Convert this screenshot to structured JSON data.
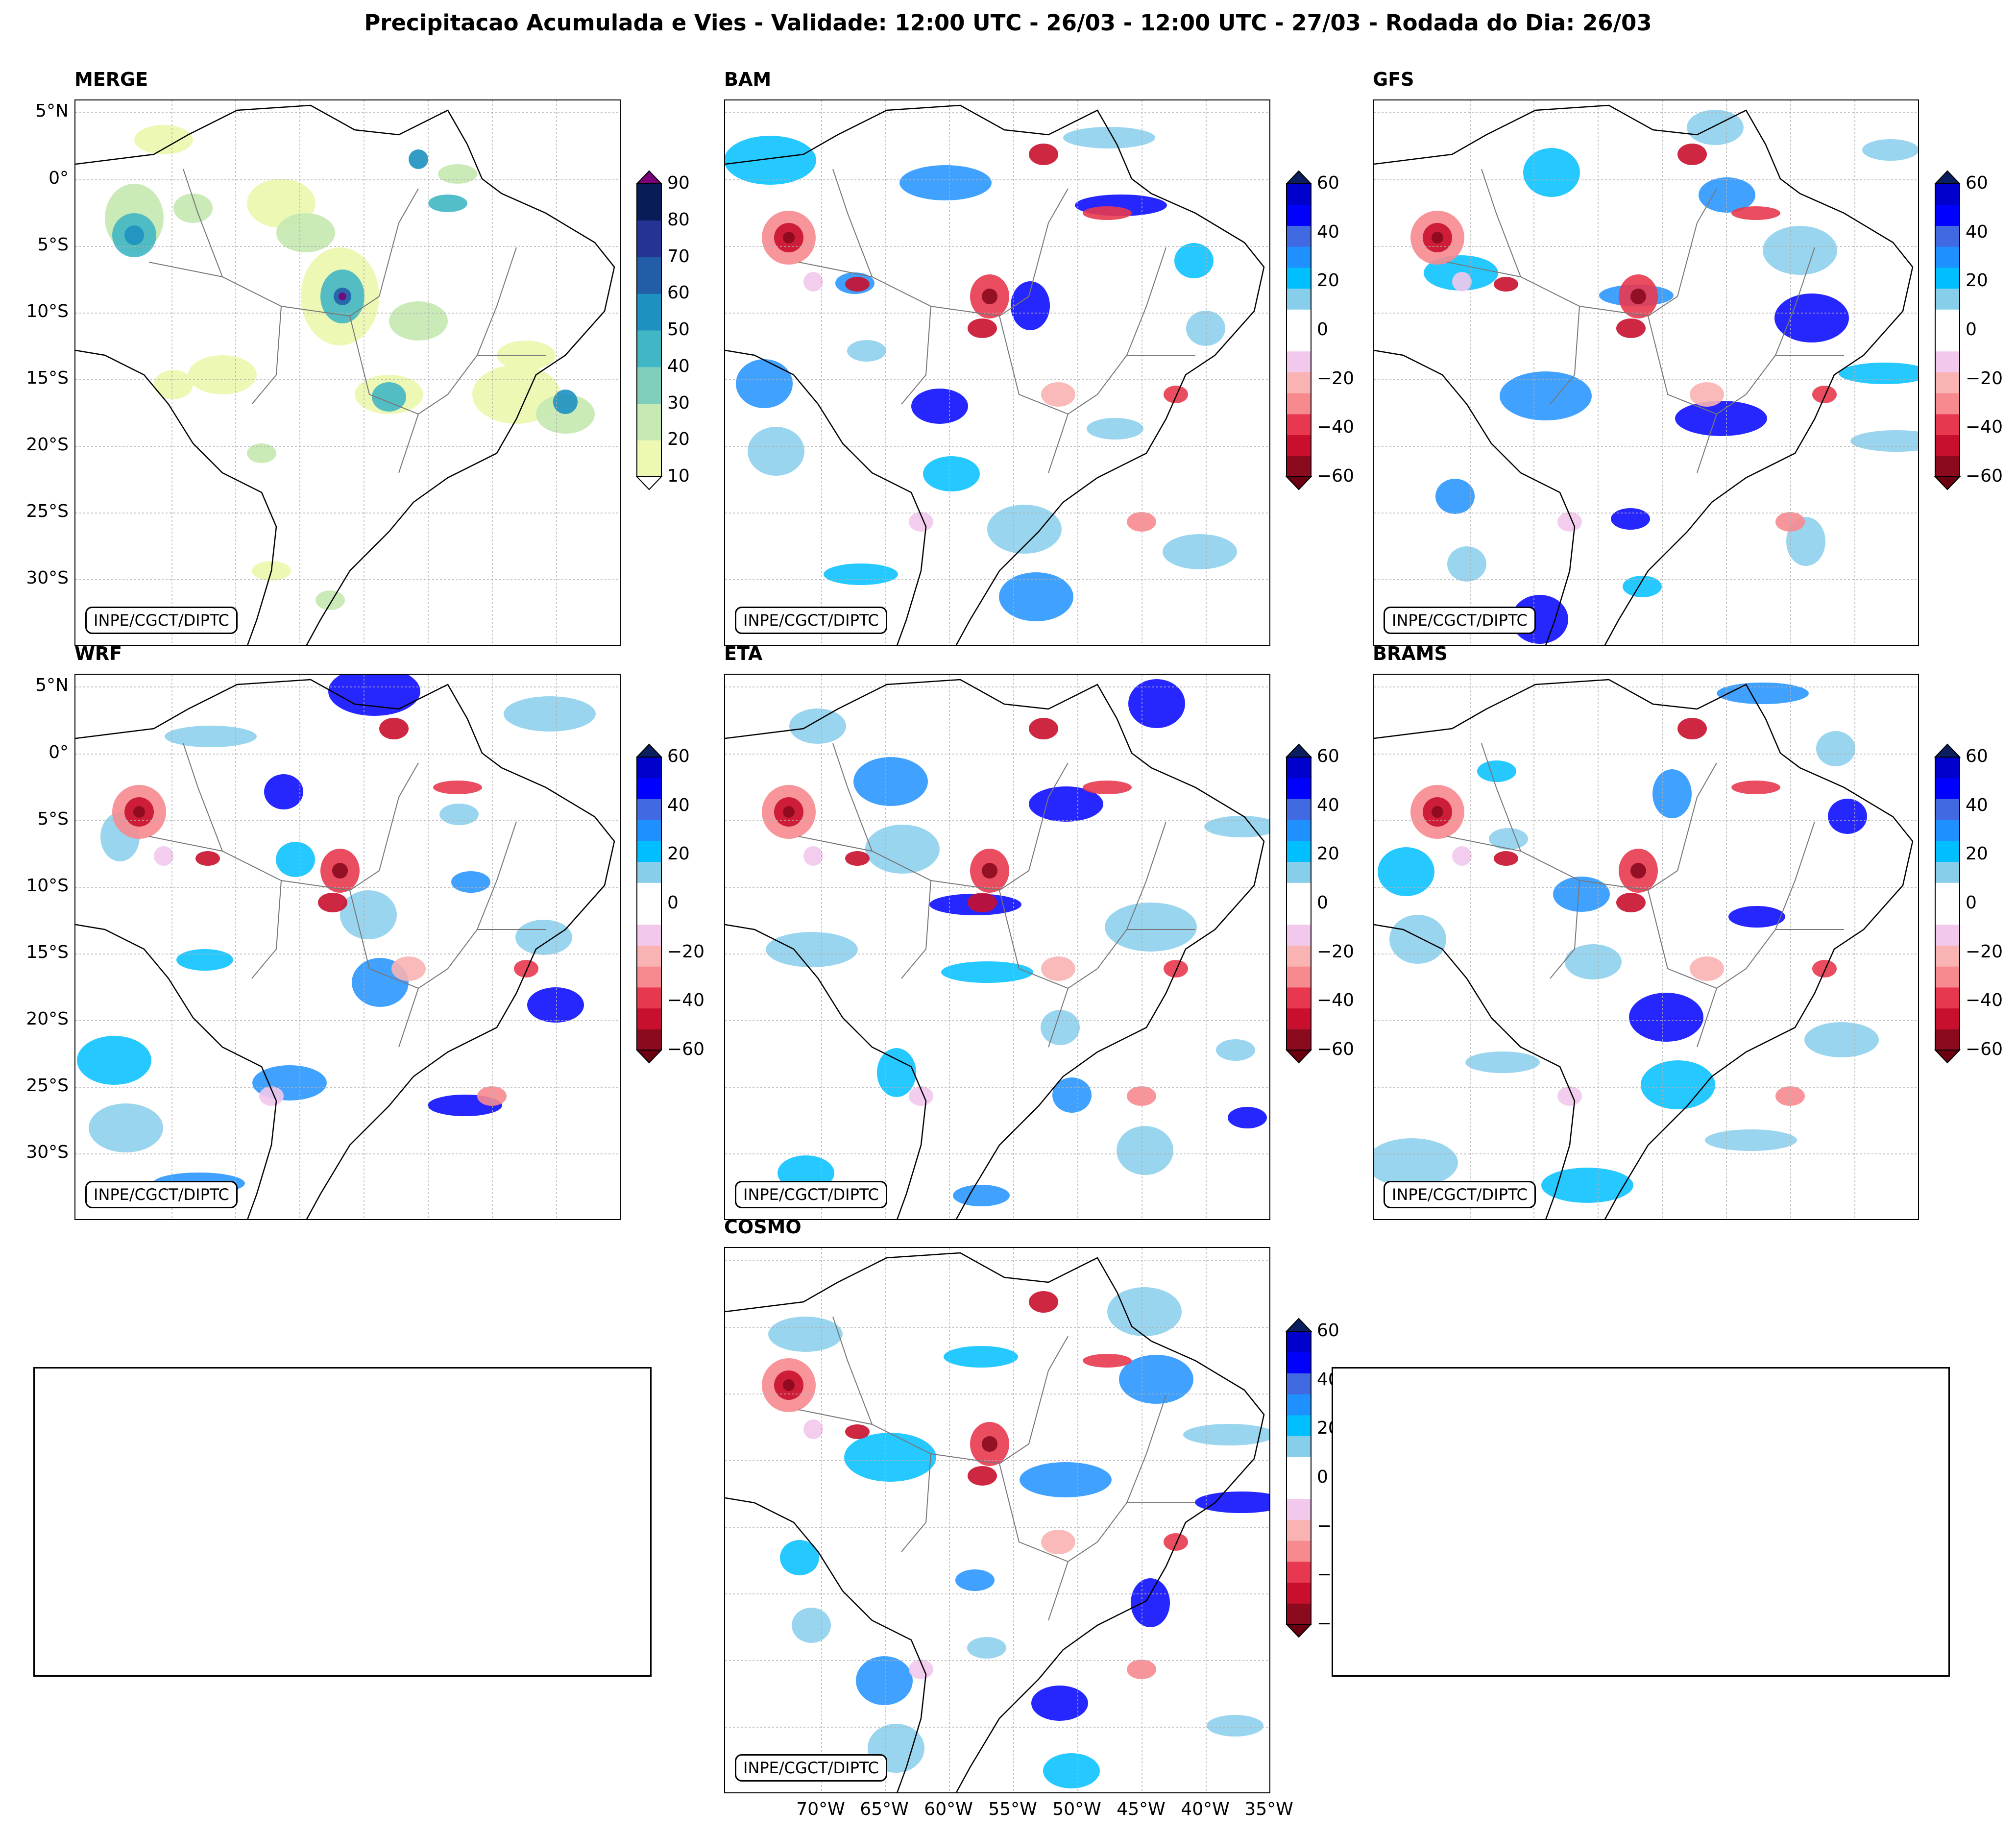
{
  "title": "Precipitacao Acumulada e Vies - Validade: 12:00 UTC - 26/03 - 12:00 UTC - 27/03 - Rodada do Dia: 26/03",
  "credit": "INPE/CGCT/DIPTC",
  "lat_labels": [
    "5°N",
    "0°",
    "5°S",
    "10°S",
    "15°S",
    "20°S",
    "25°S",
    "30°S"
  ],
  "lon_labels": [
    "70°W",
    "65°W",
    "60°W",
    "55°W",
    "50°W",
    "45°W",
    "40°W",
    "35°W"
  ],
  "panels": [
    {
      "name": "MERGE",
      "colorbar": "precip"
    },
    {
      "name": "BAM",
      "colorbar": "bias"
    },
    {
      "name": "GFS",
      "colorbar": "bias"
    },
    {
      "name": "WRF",
      "colorbar": "bias"
    },
    {
      "name": "ETA",
      "colorbar": "bias"
    },
    {
      "name": "BRAMS",
      "colorbar": "bias"
    },
    {
      "name": "COSMO",
      "colorbar": "bias"
    }
  ],
  "colorbars": {
    "precip": {
      "ticks": [
        "90",
        "80",
        "70",
        "60",
        "50",
        "40",
        "30",
        "20",
        "10"
      ],
      "colors": [
        "#edf8b1",
        "#c7e9b4",
        "#7fcdbb",
        "#41b6c4",
        "#1d91c0",
        "#225ea8",
        "#253494",
        "#081d58"
      ],
      "over_color": "#7a0177",
      "under_color": "#ffffff"
    },
    "bias": {
      "ticks": [
        "60",
        "40",
        "20",
        "0",
        "−20",
        "−40",
        "−60"
      ],
      "colors": [
        "#8b0a1e",
        "#c8102e",
        "#e8384f",
        "#f78a8f",
        "#f9b3b3",
        "#f2c8ec",
        "#ffffff",
        "#ffffff",
        "#87ceeb",
        "#00bfff",
        "#1e90ff",
        "#4169e1",
        "#0000ff",
        "#0000cd"
      ],
      "over_color": "#0b1f5e",
      "under_color": "#6b0010"
    }
  }
}
